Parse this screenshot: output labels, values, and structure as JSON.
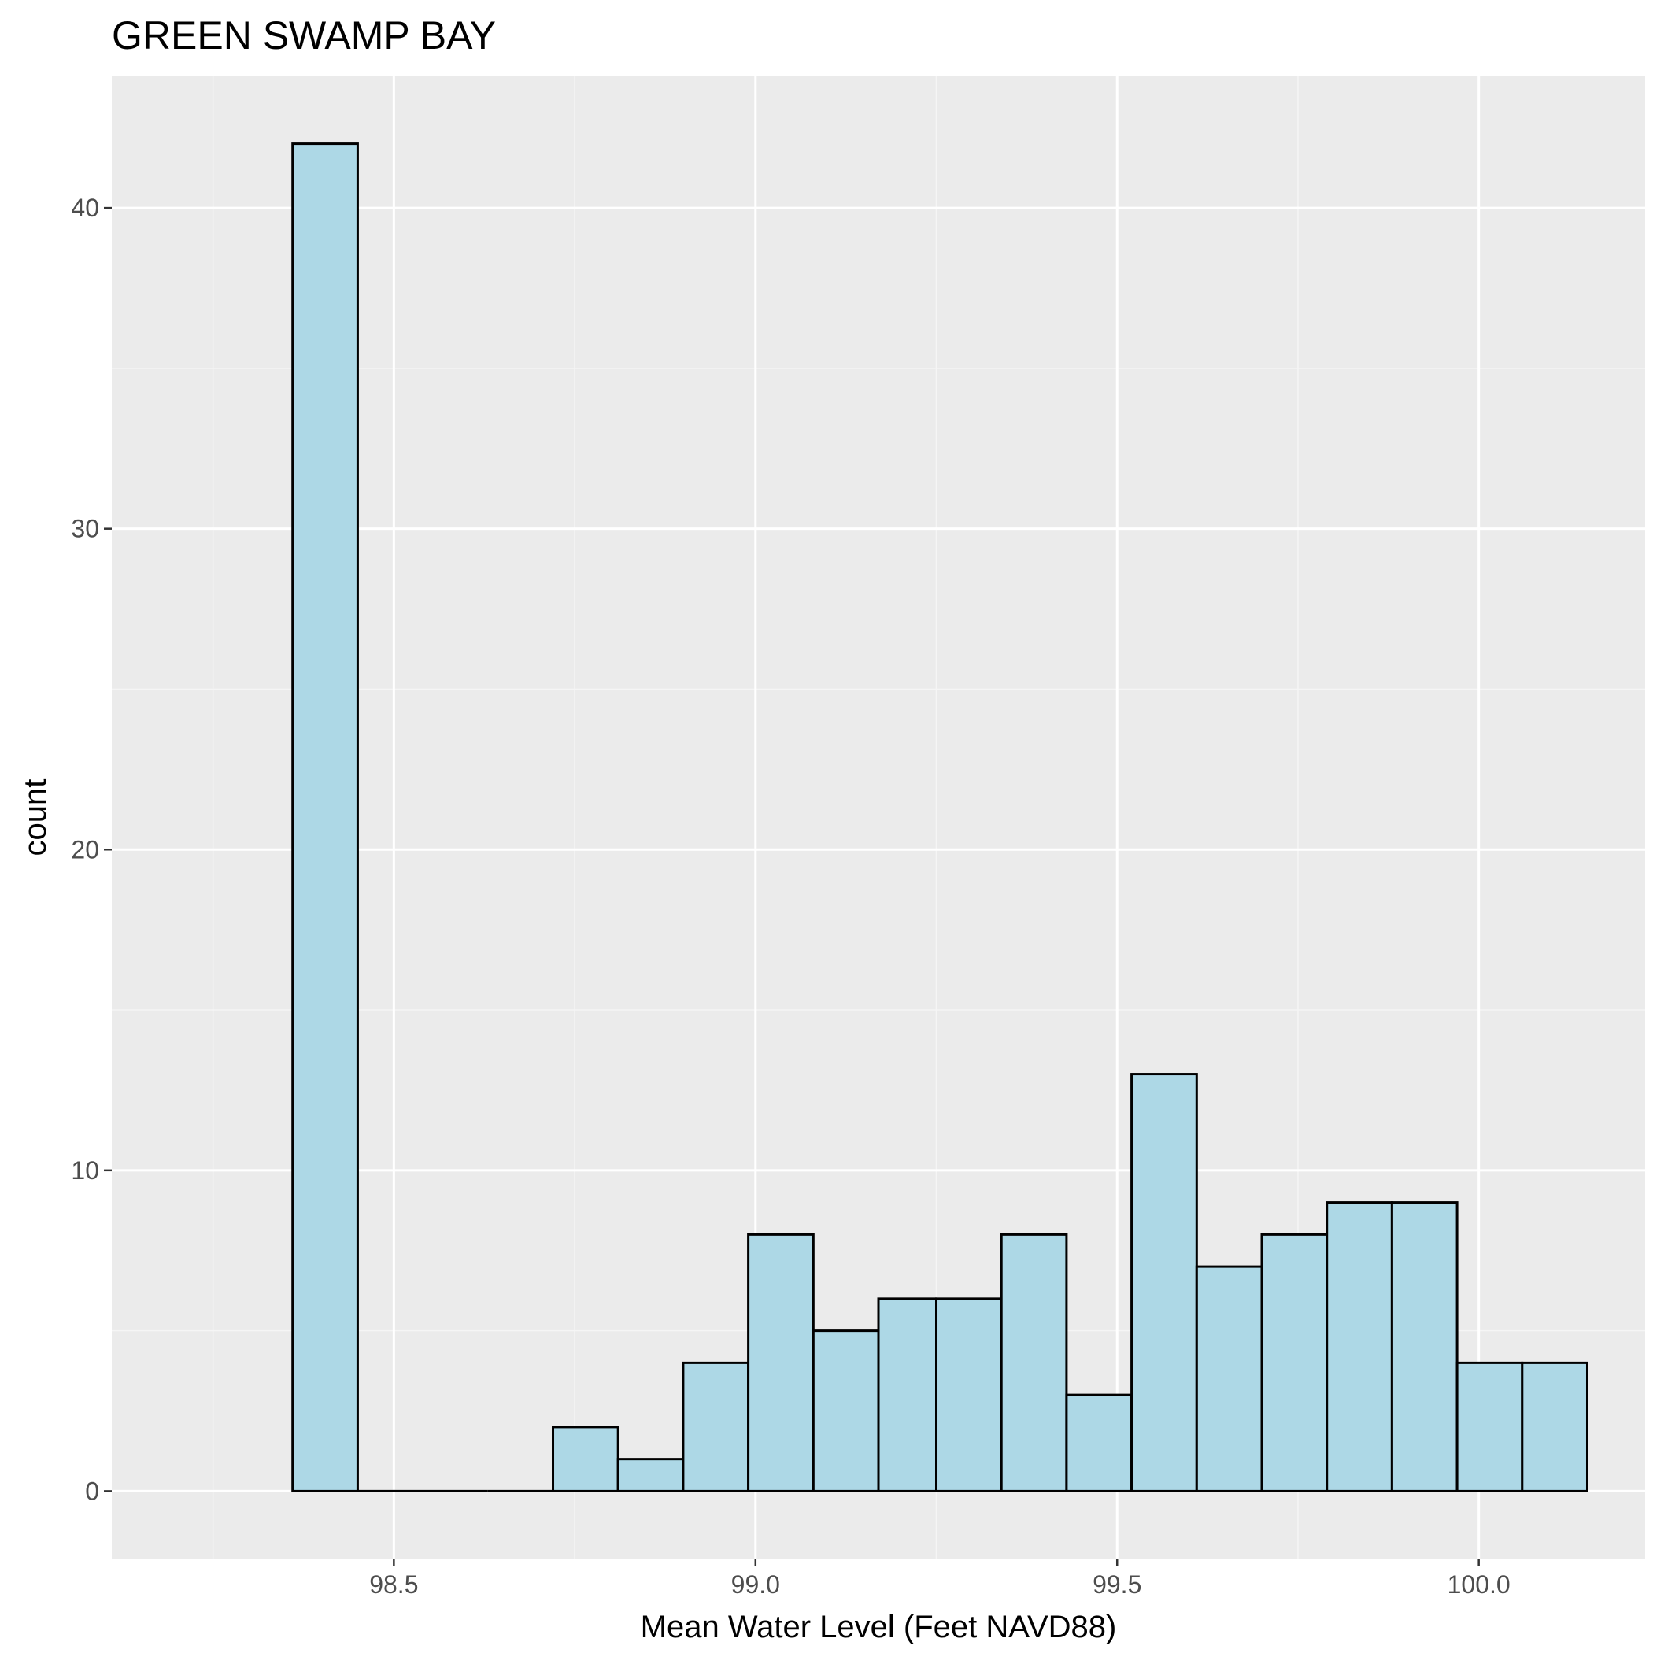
{
  "chart_data": {
    "type": "bar",
    "title": "GREEN SWAMP BAY",
    "xlabel": "Mean Water Level (Feet NAVD88)",
    "ylabel": "count",
    "xlim": [
      98.11,
      100.23
    ],
    "ylim": [
      -2.1,
      44.1
    ],
    "x_ticks": [
      98.5,
      99.0,
      99.5,
      100.0
    ],
    "x_tick_labels": [
      "98.5",
      "99.0",
      "99.5",
      "100.0"
    ],
    "y_ticks": [
      0,
      10,
      20,
      30,
      40
    ],
    "y_tick_labels": [
      "0",
      "10",
      "20",
      "30",
      "40"
    ],
    "grid": true,
    "colors": {
      "panel_background": "#EBEBEB",
      "grid_major": "#FFFFFF",
      "grid_minor": "#F5F5F5",
      "bar_fill": "#ADD8E6",
      "bar_outline": "#000000"
    },
    "bins": [
      {
        "x0": 98.36,
        "x1": 98.45,
        "count": 42
      },
      {
        "x0": 98.45,
        "x1": 98.54,
        "count": 0
      },
      {
        "x0": 98.54,
        "x1": 98.63,
        "count": 0
      },
      {
        "x0": 98.63,
        "x1": 98.72,
        "count": 0
      },
      {
        "x0": 98.72,
        "x1": 98.81,
        "count": 2
      },
      {
        "x0": 98.81,
        "x1": 98.9,
        "count": 1
      },
      {
        "x0": 98.9,
        "x1": 98.99,
        "count": 4
      },
      {
        "x0": 98.99,
        "x1": 99.08,
        "count": 8
      },
      {
        "x0": 99.08,
        "x1": 99.17,
        "count": 5
      },
      {
        "x0": 99.17,
        "x1": 99.25,
        "count": 6
      },
      {
        "x0": 99.25,
        "x1": 99.34,
        "count": 6
      },
      {
        "x0": 99.34,
        "x1": 99.43,
        "count": 8
      },
      {
        "x0": 99.43,
        "x1": 99.52,
        "count": 3
      },
      {
        "x0": 99.52,
        "x1": 99.61,
        "count": 13
      },
      {
        "x0": 99.61,
        "x1": 99.7,
        "count": 7
      },
      {
        "x0": 99.7,
        "x1": 99.79,
        "count": 8
      },
      {
        "x0": 99.79,
        "x1": 99.88,
        "count": 9
      },
      {
        "x0": 99.88,
        "x1": 99.97,
        "count": 9
      },
      {
        "x0": 99.97,
        "x1": 100.06,
        "count": 4
      },
      {
        "x0": 100.06,
        "x1": 100.15,
        "count": 4
      }
    ]
  }
}
